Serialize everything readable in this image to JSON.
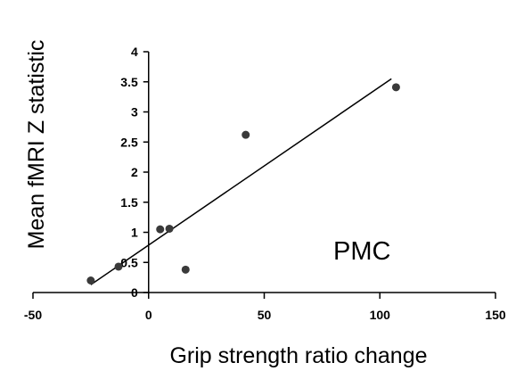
{
  "chart_data": {
    "type": "scatter",
    "xlabel": "Grip strength ratio change",
    "ylabel": "Mean fMRI Z statistic",
    "annotation": "PMC",
    "xlim": [
      -50,
      150
    ],
    "ylim": [
      0,
      4
    ],
    "x_ticks": [
      -50,
      0,
      50,
      100,
      150
    ],
    "y_ticks": [
      0,
      0.5,
      1,
      1.5,
      2,
      2.5,
      3,
      3.5,
      4
    ],
    "grid": false,
    "points": [
      {
        "x": -25,
        "y": 0.2
      },
      {
        "x": -13,
        "y": 0.43
      },
      {
        "x": 5,
        "y": 1.05
      },
      {
        "x": 9,
        "y": 1.06
      },
      {
        "x": 16,
        "y": 0.38
      },
      {
        "x": 42,
        "y": 2.62
      },
      {
        "x": 107,
        "y": 3.41
      }
    ],
    "trendline": {
      "x": [
        -25,
        105
      ],
      "y": [
        0.13,
        3.55
      ]
    },
    "marker_color": "#3a3a3a",
    "line_color": "#000000"
  }
}
